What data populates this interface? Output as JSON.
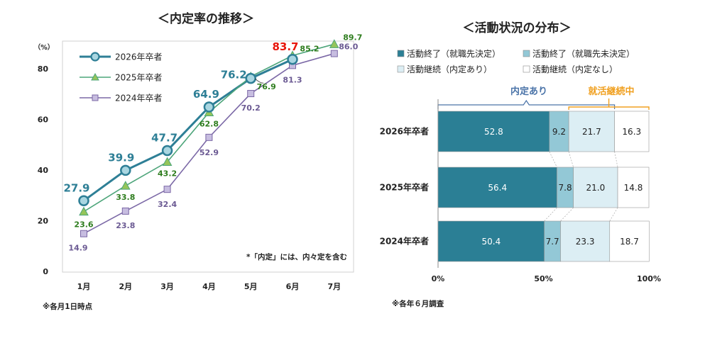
{
  "left": {
    "title": "＜内定率の推移＞",
    "unit_label": "（%）",
    "footnote": "*「内定」には、内々定を含む",
    "note": "※各月1日時点"
  },
  "right": {
    "title": "＜活動状況の分布＞",
    "note": "※各年６月調査",
    "bracket_left": "内定あり",
    "bracket_right": "就活継続中"
  },
  "colors": {
    "s2026": "#2e7f96",
    "s2025": "#4da57a",
    "s2024": "#7b68a6",
    "label2026": "#2e7f96",
    "label2025": "#2e7d1e",
    "label2024": "#6b5a93",
    "highlight": "#e8160c",
    "marker2026_fill": "#a9d6e1",
    "marker2025_fill": "#95c55a",
    "marker2024_fill": "#c7bde0",
    "bar1": "#2b7f95",
    "bar2": "#93c8d6",
    "bar3": "#dceef4",
    "bar4": "#ffffff",
    "bracket_left": "#4a73a8",
    "bracket_right": "#f0a020"
  },
  "chart_data": [
    {
      "type": "line",
      "x": [
        "1月",
        "2月",
        "3月",
        "4月",
        "5月",
        "6月",
        "7月"
      ],
      "ylim": [
        0,
        90
      ],
      "yticks": [
        0,
        20,
        40,
        60,
        80
      ],
      "legend_position": "top-left",
      "series": [
        {
          "name": "2026年卒者",
          "values": [
            27.9,
            39.9,
            47.7,
            64.9,
            76.2,
            83.7,
            null
          ],
          "labels": [
            "27.9",
            "39.9",
            "47.7",
            "64.9",
            "76.2",
            "83.7",
            ""
          ]
        },
        {
          "name": "2025年卒者",
          "values": [
            23.6,
            33.8,
            43.2,
            62.8,
            76.9,
            85.2,
            89.7
          ],
          "labels": [
            "23.6",
            "33.8",
            "43.2",
            "62.8",
            "76.9",
            "85.2",
            "89.7"
          ]
        },
        {
          "name": "2024年卒者",
          "values": [
            14.9,
            23.8,
            32.4,
            52.9,
            70.2,
            81.3,
            86.0
          ],
          "labels": [
            "14.9",
            "23.8",
            "32.4",
            "52.9",
            "70.2",
            "81.3",
            "86.0"
          ]
        }
      ]
    },
    {
      "type": "bar",
      "orientation": "horizontal-stacked",
      "categories": [
        "2026年卒者",
        "2025年卒者",
        "2024年卒者"
      ],
      "xticks": [
        "0%",
        "50%",
        "100%"
      ],
      "legend_position": "top",
      "series": [
        {
          "name": "活動終了（就職先決定）",
          "values": [
            52.8,
            56.4,
            50.4
          ]
        },
        {
          "name": "活動終了（就職先未決定）",
          "values": [
            9.2,
            7.8,
            7.7
          ]
        },
        {
          "name": "活動継続（内定あり）",
          "values": [
            21.7,
            21.0,
            23.3
          ]
        },
        {
          "name": "活動継続（内定なし）",
          "values": [
            16.3,
            14.8,
            18.7
          ]
        }
      ]
    }
  ]
}
